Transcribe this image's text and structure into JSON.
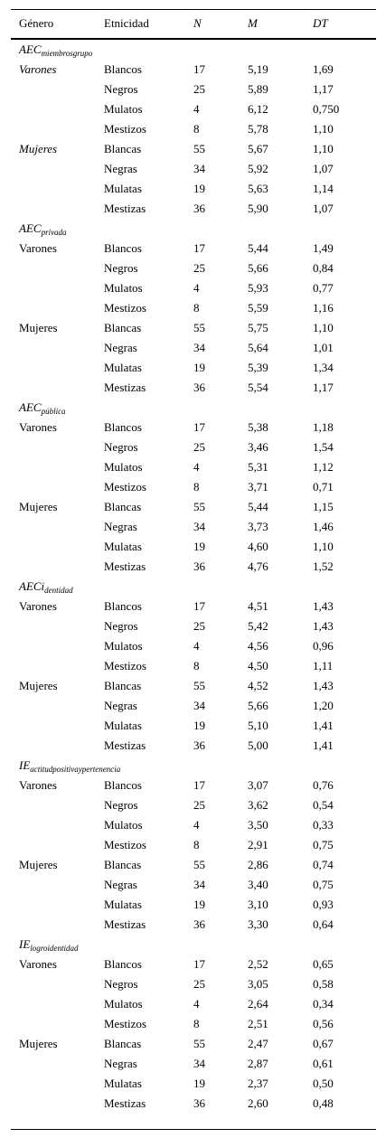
{
  "header": {
    "genero": "Género",
    "etnicidad": "Etnicidad",
    "n": "N",
    "m": "M",
    "dt": "DT"
  },
  "sections": [
    {
      "label_main": "AEC",
      "label_sub": "miembrosgrupo",
      "rows": [
        {
          "genero": "Varones",
          "etnicidad": "Blancos",
          "n": "17",
          "m": "5,19",
          "dt": "1,69"
        },
        {
          "genero": "",
          "etnicidad": "Negros",
          "n": "25",
          "m": "5,89",
          "dt": "1,17"
        },
        {
          "genero": "",
          "etnicidad": "Mulatos",
          "n": "4",
          "m": "6,12",
          "dt": "0,750"
        },
        {
          "genero": "",
          "etnicidad": "Mestizos",
          "n": "8",
          "m": "5,78",
          "dt": "1,10"
        },
        {
          "genero": "Mujeres",
          "etnicidad": "Blancas",
          "n": "55",
          "m": "5,67",
          "dt": "1,10"
        },
        {
          "genero": "",
          "etnicidad": "Negras",
          "n": "34",
          "m": "5,92",
          "dt": "1,07"
        },
        {
          "genero": "",
          "etnicidad": "Mulatas",
          "n": "19",
          "m": "5,63",
          "dt": "1,14"
        },
        {
          "genero": "",
          "etnicidad": "Mestizas",
          "n": "36",
          "m": "5,90",
          "dt": "1,07"
        }
      ]
    },
    {
      "label_main": "AEC",
      "label_sub": "privada",
      "rows": [
        {
          "genero": "Varones",
          "etnicidad": "Blancos",
          "n": "17",
          "m": "5,44",
          "dt": "1,49"
        },
        {
          "genero": "",
          "etnicidad": "Negros",
          "n": "25",
          "m": "5,66",
          "dt": "0,84"
        },
        {
          "genero": "",
          "etnicidad": "Mulatos",
          "n": "4",
          "m": "5,93",
          "dt": "0,77"
        },
        {
          "genero": "",
          "etnicidad": "Mestizos",
          "n": "8",
          "m": "5,59",
          "dt": "1,16"
        },
        {
          "genero": "Mujeres",
          "etnicidad": "Blancas",
          "n": "55",
          "m": "5,75",
          "dt": "1,10"
        },
        {
          "genero": "",
          "etnicidad": "Negras",
          "n": "34",
          "m": "5,64",
          "dt": "1,01"
        },
        {
          "genero": "",
          "etnicidad": "Mulatas",
          "n": "19",
          "m": "5,39",
          "dt": "1,34"
        },
        {
          "genero": "",
          "etnicidad": "Mestizas",
          "n": "36",
          "m": "5,54",
          "dt": "1,17"
        }
      ]
    },
    {
      "label_main": "AEC",
      "label_sub": "pública",
      "rows": [
        {
          "genero": "Varones",
          "etnicidad": "Blancos",
          "n": "17",
          "m": "5,38",
          "dt": "1,18"
        },
        {
          "genero": "",
          "etnicidad": "Negros",
          "n": "25",
          "m": "3,46",
          "dt": "1,54"
        },
        {
          "genero": "",
          "etnicidad": "Mulatos",
          "n": "4",
          "m": "5,31",
          "dt": "1,12"
        },
        {
          "genero": "",
          "etnicidad": "Mestizos",
          "n": "8",
          "m": "3,71",
          "dt": "0,71"
        },
        {
          "genero": "Mujeres",
          "etnicidad": "Blancas",
          "n": "55",
          "m": "5,44",
          "dt": "1,15"
        },
        {
          "genero": "",
          "etnicidad": "Negras",
          "n": "34",
          "m": "3,73",
          "dt": "1,46"
        },
        {
          "genero": "",
          "etnicidad": "Mulatas",
          "n": "19",
          "m": "4,60",
          "dt": "1,10"
        },
        {
          "genero": "",
          "etnicidad": "Mestizas",
          "n": "36",
          "m": "4,76",
          "dt": "1,52"
        }
      ]
    },
    {
      "label_main": "AECi",
      "label_sub": "dentidad",
      "rows": [
        {
          "genero": "Varones",
          "etnicidad": "Blancos",
          "n": "17",
          "m": "4,51",
          "dt": "1,43"
        },
        {
          "genero": "",
          "etnicidad": "Negros",
          "n": "25",
          "m": "5,42",
          "dt": "1,43"
        },
        {
          "genero": "",
          "etnicidad": "Mulatos",
          "n": "4",
          "m": "4,56",
          "dt": "0,96"
        },
        {
          "genero": "",
          "etnicidad": "Mestizos",
          "n": "8",
          "m": "4,50",
          "dt": "1,11"
        },
        {
          "genero": "Mujeres",
          "etnicidad": "Blancas",
          "n": "55",
          "m": "4,52",
          "dt": "1,43"
        },
        {
          "genero": "",
          "etnicidad": "Negras",
          "n": "34",
          "m": "5,66",
          "dt": "1,20"
        },
        {
          "genero": "",
          "etnicidad": "Mulatas",
          "n": "19",
          "m": "5,10",
          "dt": "1,41"
        },
        {
          "genero": "",
          "etnicidad": "Mestizas",
          "n": "36",
          "m": "5,00",
          "dt": "1,41"
        }
      ]
    },
    {
      "label_main": "IE",
      "label_sub": "actitudpositivaypertenencia",
      "rows": [
        {
          "genero": "Varones",
          "etnicidad": "Blancos",
          "n": "17",
          "m": "3,07",
          "dt": "0,76"
        },
        {
          "genero": "",
          "etnicidad": "Negros",
          "n": "25",
          "m": "3,62",
          "dt": "0,54"
        },
        {
          "genero": "",
          "etnicidad": "Mulatos",
          "n": "4",
          "m": "3,50",
          "dt": "0,33"
        },
        {
          "genero": "",
          "etnicidad": "Mestizos",
          "n": "8",
          "m": "2,91",
          "dt": "0,75"
        },
        {
          "genero": "Mujeres",
          "etnicidad": "Blancas",
          "n": "55",
          "m": "2,86",
          "dt": "0,74"
        },
        {
          "genero": "",
          "etnicidad": "Negras",
          "n": "34",
          "m": "3,40",
          "dt": "0,75"
        },
        {
          "genero": "",
          "etnicidad": "Mulatas",
          "n": "19",
          "m": "3,10",
          "dt": "0,93"
        },
        {
          "genero": "",
          "etnicidad": "Mestizas",
          "n": "36",
          "m": "3,30",
          "dt": "0,64"
        }
      ]
    },
    {
      "label_main": "IE",
      "label_sub": "logroidentidad",
      "rows": [
        {
          "genero": "Varones",
          "etnicidad": "Blancos",
          "n": "17",
          "m": "2,52",
          "dt": "0,65"
        },
        {
          "genero": "",
          "etnicidad": "Negros",
          "n": "25",
          "m": "3,05",
          "dt": "0,58"
        },
        {
          "genero": "",
          "etnicidad": "Mulatos",
          "n": "4",
          "m": "2,64",
          "dt": "0,34"
        },
        {
          "genero": "",
          "etnicidad": "Mestizos",
          "n": "8",
          "m": "2,51",
          "dt": "0,56"
        },
        {
          "genero": "Mujeres",
          "etnicidad": "Blancas",
          "n": "55",
          "m": "2,47",
          "dt": "0,67"
        },
        {
          "genero": "",
          "etnicidad": "Negras",
          "n": "34",
          "m": "2,87",
          "dt": "0,61"
        },
        {
          "genero": "",
          "etnicidad": "Mulatas",
          "n": "19",
          "m": "2,37",
          "dt": "0,50"
        },
        {
          "genero": "",
          "etnicidad": "Mestizas",
          "n": "36",
          "m": "2,60",
          "dt": "0,48"
        }
      ]
    }
  ]
}
